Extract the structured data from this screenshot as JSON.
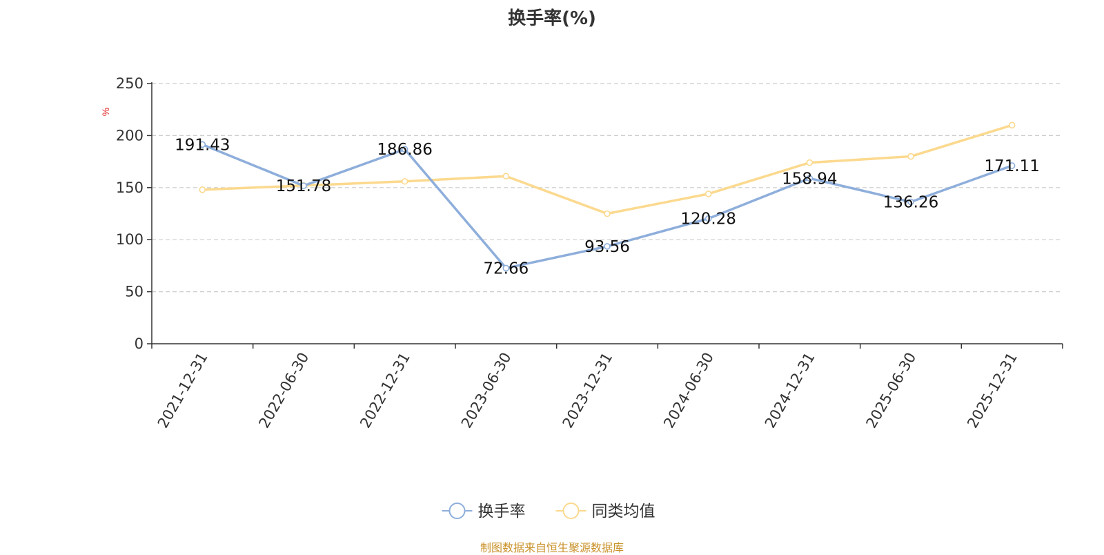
{
  "chart_data": {
    "type": "line",
    "title": "换手率(%)",
    "ylabel": "%",
    "xlabel": "",
    "ylim": [
      0,
      250
    ],
    "yticks": [
      0,
      50,
      100,
      150,
      200,
      250
    ],
    "grid": true,
    "legend_position": "bottom-center",
    "categories": [
      "2021-12-31",
      "2022-06-30",
      "2022-12-31",
      "2023-06-30",
      "2023-12-31",
      "2024-06-30",
      "2024-12-31",
      "2025-06-30",
      "2025-12-31"
    ],
    "series": [
      {
        "name": "换手率",
        "color": "#8eaedb",
        "values": [
          191.43,
          151.78,
          186.86,
          72.66,
          93.56,
          120.28,
          158.94,
          136.26,
          171.11
        ],
        "labels": [
          "191.43",
          "151.78",
          "186.86",
          "72.66",
          "93.56",
          "120.28",
          "158.94",
          "136.26",
          "171.11"
        ]
      },
      {
        "name": "同类均值",
        "color": "#fbd98e",
        "values": [
          148,
          152,
          156,
          161,
          125,
          144,
          174,
          180,
          210
        ]
      }
    ]
  },
  "footer": {
    "source": "制图数据来自恒生聚源数据库"
  }
}
